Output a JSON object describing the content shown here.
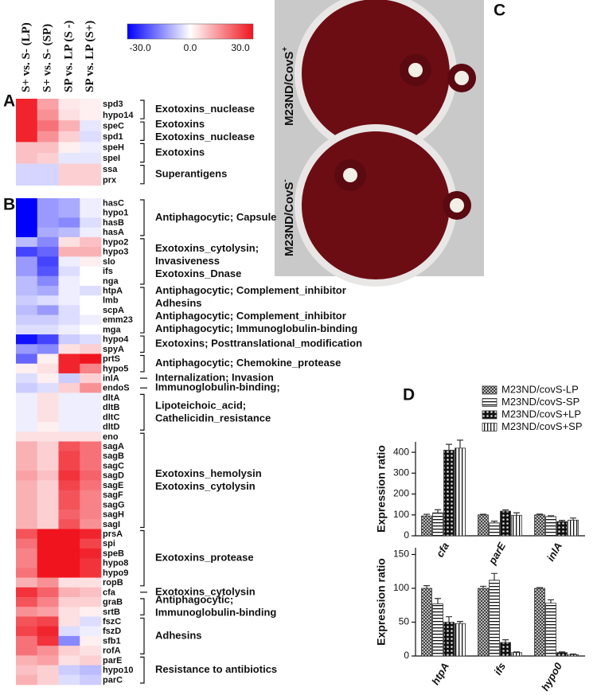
{
  "panels": {
    "a": "A",
    "b": "B",
    "c": "C",
    "d": "D"
  },
  "plates": [
    {
      "label": "M23ND/CovS",
      "superscript": "+"
    },
    {
      "label": "M23ND/CovS",
      "superscript": "-"
    }
  ],
  "chart_data": [
    {
      "type": "heatmap",
      "columns": [
        "S+ vs. S- (LP)",
        "S+ vs. S- (SP)",
        "SP vs. LP (S -)",
        "SP vs. LP (S+)"
      ],
      "zlim": [
        -30,
        30
      ],
      "colormap": [
        "#0000ff",
        "#ffffff",
        "#f0141e"
      ],
      "colorbar_ticks": [
        {
          "value": -30,
          "label": "-30.0"
        },
        {
          "value": 0,
          "label": "0.0"
        },
        {
          "value": 30,
          "label": "30.0"
        }
      ],
      "groups": [
        {
          "annotation": [
            "Exotoxins_nuclease"
          ],
          "rows": [
            "spd3",
            "hypo14"
          ],
          "values": [
            [
              28,
              12,
              3,
              2
            ],
            [
              28,
              14,
              4,
              2
            ]
          ]
        },
        {
          "annotation": [
            "Exotoxins",
            "Exotoxins_nuclease"
          ],
          "rows": [
            "speC",
            "spd1"
          ],
          "values": [
            [
              28,
              18,
              10,
              -3
            ],
            [
              28,
              14,
              6,
              -4
            ]
          ]
        },
        {
          "annotation": [
            "Exotoxins"
          ],
          "rows": [
            "speH",
            "speI"
          ],
          "values": [
            [
              8,
              8,
              2,
              -2
            ],
            [
              8,
              6,
              -3,
              -3
            ]
          ]
        },
        {
          "annotation": [
            "Superantigens"
          ],
          "rows": [
            "ssa",
            "prx"
          ],
          "values": [
            [
              -5,
              -5,
              6,
              6
            ],
            [
              -5,
              -5,
              6,
              6
            ]
          ]
        }
      ]
    },
    {
      "type": "heatmap",
      "groups": [
        {
          "annotation": [
            "Antiphagocytic; Capsule"
          ],
          "rows": [
            "hasC",
            "hypo1",
            "hasB",
            "hasA"
          ],
          "values": [
            [
              -30,
              -12,
              -10,
              -2
            ],
            [
              -30,
              -12,
              -10,
              -2
            ],
            [
              -30,
              -12,
              -14,
              -4
            ],
            [
              -30,
              -10,
              -8,
              -2
            ]
          ]
        },
        {
          "annotation": [
            "Exotoxins_cytolysin;",
            "Invasiveness",
            "Exotoxins_Dnase"
          ],
          "rows": [
            "hypo2",
            "hypo3",
            "slo",
            "ifs",
            "nga"
          ],
          "values": [
            [
              -8,
              -14,
              4,
              8
            ],
            [
              -22,
              -18,
              10,
              10
            ],
            [
              -12,
              -22,
              -2,
              2
            ],
            [
              -12,
              -20,
              -4,
              0
            ],
            [
              -8,
              -14,
              -2,
              0
            ]
          ]
        },
        {
          "annotation": [
            "Antiphagocytic; Complement_inhibitor",
            "Adhesins",
            "Antiphagocytic; Complement_inhibitor",
            "Antiphagocytic; Immunoglobulin-binding"
          ],
          "rows": [
            "htpA",
            "lmb",
            "scpA",
            "emm23",
            "mga"
          ],
          "values": [
            [
              -8,
              -10,
              -2,
              -4
            ],
            [
              -6,
              -4,
              -2,
              0
            ],
            [
              -8,
              -12,
              -4,
              0
            ],
            [
              -6,
              -6,
              -4,
              -2
            ],
            [
              -4,
              -4,
              -2,
              0
            ]
          ]
        },
        {
          "annotation": [
            "Exotoxins; Posttranslational_modification"
          ],
          "rows": [
            "hypo4",
            "spyA"
          ],
          "values": [
            [
              -28,
              -22,
              -6,
              -4
            ],
            [
              -12,
              -14,
              4,
              6
            ]
          ]
        },
        {
          "annotation": [
            "Antiphagocytic; Chemokine_protease"
          ],
          "rows": [
            "prtS",
            "hypo5"
          ],
          "values": [
            [
              -18,
              2,
              28,
              30
            ],
            [
              2,
              4,
              28,
              16
            ]
          ]
        },
        {
          "annotation": [
            "Internalization; Invasion"
          ],
          "rows": [
            "inlA"
          ],
          "values": [
            [
              -4,
              2,
              -6,
              6
            ]
          ]
        },
        {
          "annotation": [
            "Immunoglobulin-binding;"
          ],
          "rows": [
            "endoS"
          ],
          "values": [
            [
              -6,
              -4,
              6,
              14
            ]
          ]
        },
        {
          "annotation": [
            "Lipoteichoic_acid;",
            "Cathelicidin_resistance"
          ],
          "rows": [
            "dltA",
            "dltB",
            "dltC",
            "dltD"
          ],
          "values": [
            [
              -2,
              4,
              -2,
              -2
            ],
            [
              -2,
              4,
              -2,
              -2
            ],
            [
              -2,
              4,
              -2,
              -2
            ],
            [
              -2,
              2,
              -2,
              -2
            ]
          ]
        },
        {
          "annotation": [
            "Exotoxins_hemolysin",
            "Exotoxins_cytolysin"
          ],
          "rows": [
            "eno",
            "sagA",
            "sagB",
            "sagC",
            "sagD",
            "sagE",
            "sagF",
            "sagG",
            "sagH",
            "sagI"
          ],
          "values": [
            [
              4,
              4,
              4,
              4
            ],
            [
              10,
              6,
              22,
              18
            ],
            [
              10,
              6,
              24,
              18
            ],
            [
              10,
              6,
              24,
              18
            ],
            [
              12,
              8,
              26,
              20
            ],
            [
              10,
              6,
              24,
              18
            ],
            [
              10,
              6,
              22,
              16
            ],
            [
              10,
              6,
              22,
              16
            ],
            [
              10,
              6,
              20,
              16
            ],
            [
              10,
              6,
              22,
              14
            ]
          ]
        },
        {
          "annotation": [
            "Exotoxins_protease"
          ],
          "rows": [
            "prsA",
            "spi",
            "speB",
            "hypo8",
            "hypo9",
            "ropB"
          ],
          "values": [
            [
              22,
              30,
              30,
              28
            ],
            [
              18,
              30,
              30,
              24
            ],
            [
              16,
              30,
              30,
              28
            ],
            [
              16,
              30,
              30,
              26
            ],
            [
              18,
              30,
              30,
              26
            ],
            [
              10,
              14,
              4,
              4
            ]
          ]
        },
        {
          "annotation": [
            "Exotoxins_cytolysin"
          ],
          "rows": [
            "cfa"
          ],
          "values": [
            [
              26,
              20,
              10,
              8
            ]
          ]
        },
        {
          "annotation": [
            "Antiphagocytic;",
            "Immunoglobulin-binding"
          ],
          "rows": [
            "graB",
            "srtB"
          ],
          "values": [
            [
              22,
              16,
              6,
              6
            ],
            [
              14,
              12,
              4,
              2
            ]
          ]
        },
        {
          "annotation": [
            "Adhesins"
          ],
          "rows": [
            "fszC",
            "fszD",
            "sfb1",
            "rofA"
          ],
          "values": [
            [
              22,
              24,
              4,
              -4
            ],
            [
              24,
              28,
              -4,
              -2
            ],
            [
              18,
              26,
              -14,
              2
            ],
            [
              18,
              14,
              6,
              4
            ]
          ]
        },
        {
          "annotation": [
            "Resistance to antibiotics"
          ],
          "rows": [
            "parE",
            "hypo10",
            "parC"
          ],
          "values": [
            [
              10,
              12,
              4,
              6
            ],
            [
              8,
              6,
              -6,
              -8
            ],
            [
              10,
              6,
              -4,
              -6
            ]
          ]
        }
      ]
    },
    {
      "type": "bar",
      "y_label": "Expression ratio",
      "categories": [
        "cfa",
        "parE",
        "inlA"
      ],
      "ylim": [
        0,
        450
      ],
      "yticks": [
        0,
        100,
        200,
        300,
        400
      ],
      "legend": "top-right",
      "series": [
        {
          "name": "M23ND/covS-LP",
          "color": "#333333",
          "pattern": "checker",
          "values": [
            95,
            100,
            100
          ],
          "errors": [
            8,
            3,
            4
          ]
        },
        {
          "name": "M23ND/covS-SP",
          "color": "#333333",
          "pattern": "hstripe",
          "values": [
            110,
            62,
            92
          ],
          "errors": [
            15,
            8,
            4
          ]
        },
        {
          "name": "M23ND/covS+LP",
          "color": "#333333",
          "pattern": "crosshatch",
          "values": [
            410,
            118,
            68
          ],
          "errors": [
            28,
            6,
            6
          ]
        },
        {
          "name": "M23ND/covS+SP",
          "color": "#333333",
          "pattern": "vstripe",
          "values": [
            420,
            98,
            75
          ],
          "errors": [
            38,
            12,
            10
          ]
        }
      ]
    },
    {
      "type": "bar",
      "y_label": "Expression ratio",
      "categories": [
        "htpA",
        "ifs",
        "hypo0"
      ],
      "ylim": [
        0,
        160
      ],
      "yticks": [
        0,
        50,
        100,
        150
      ],
      "series": [
        {
          "color": "#333333",
          "pattern": "checker",
          "values": [
            100,
            100,
            100
          ],
          "errors": [
            4,
            3,
            1
          ]
        },
        {
          "color": "#333333",
          "pattern": "hstripe",
          "values": [
            77,
            112,
            78
          ],
          "errors": [
            8,
            10,
            5
          ]
        },
        {
          "color": "#333333",
          "pattern": "crosshatch",
          "values": [
            50,
            20,
            5
          ],
          "errors": [
            8,
            4,
            1
          ]
        },
        {
          "color": "#333333",
          "pattern": "vstripe",
          "values": [
            48,
            5,
            2
          ],
          "errors": [
            3,
            1,
            1
          ]
        }
      ]
    }
  ]
}
